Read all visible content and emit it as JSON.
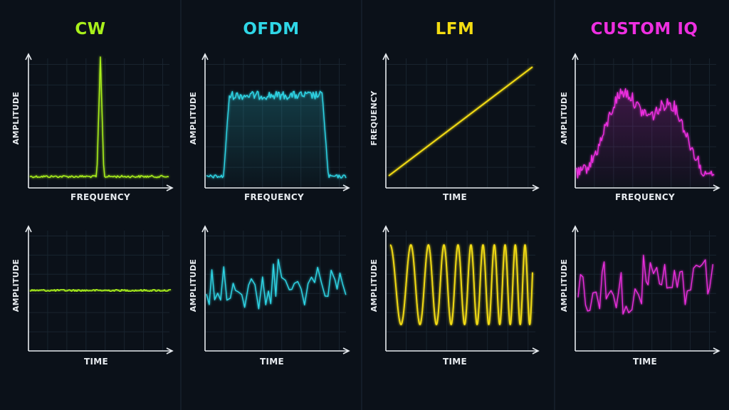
{
  "columns": [
    {
      "title": "CW",
      "color": "#a9f01b",
      "top": {
        "xlabel": "FREQUENCY",
        "ylabel": "AMPLITUDE",
        "signal": "cw-spectrum"
      },
      "bottom": {
        "xlabel": "TIME",
        "ylabel": "AMPLITUDE",
        "signal": "cw-time"
      }
    },
    {
      "title": "OFDM",
      "color": "#2fd6e6",
      "top": {
        "xlabel": "FREQUENCY",
        "ylabel": "AMPLITUDE",
        "signal": "ofdm-spectrum"
      },
      "bottom": {
        "xlabel": "TIME",
        "ylabel": "AMPLITUDE",
        "signal": "ofdm-time"
      }
    },
    {
      "title": "LFM",
      "color": "#f3dc12",
      "top": {
        "xlabel": "TIME",
        "ylabel": "FREQUENCY",
        "signal": "lfm-chirp-line"
      },
      "bottom": {
        "xlabel": "TIME",
        "ylabel": "AMPLITUDE",
        "signal": "lfm-time"
      }
    },
    {
      "title": "CUSTOM IQ",
      "color": "#ee2fe0",
      "top": {
        "xlabel": "FREQUENCY",
        "ylabel": "AMPLITUDE",
        "signal": "custom-spectrum"
      },
      "bottom": {
        "xlabel": "TIME",
        "ylabel": "AMPLITUDE",
        "signal": "custom-time"
      }
    }
  ],
  "colors": {
    "background": "#0b1119",
    "divider": "#1c2633",
    "grid": "#19242f",
    "axis": "#e8ecf0",
    "text": "#e8ecf0"
  }
}
